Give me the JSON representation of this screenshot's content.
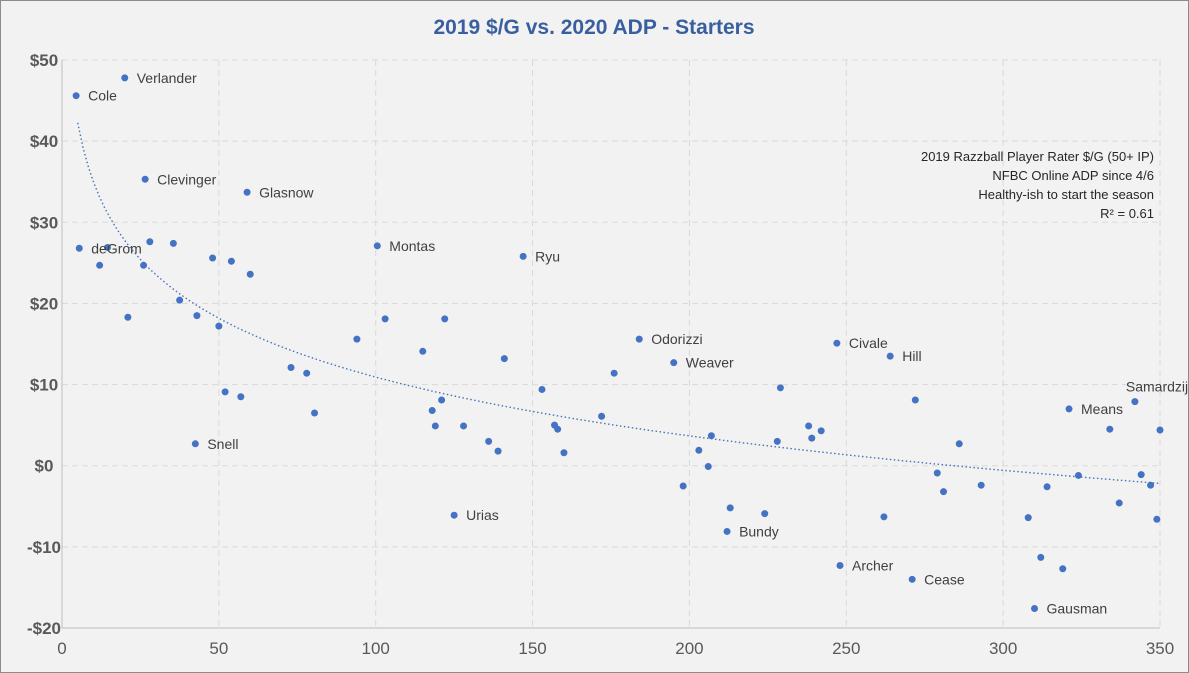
{
  "chart_data": {
    "type": "scatter",
    "title": "2019 $/G vs. 2020 ADP - Starters",
    "xlabel": "",
    "ylabel": "",
    "xlim": [
      0,
      350
    ],
    "ylim": [
      -20,
      50
    ],
    "x_ticks": [
      0,
      50,
      100,
      150,
      200,
      250,
      300,
      350
    ],
    "y_ticks": [
      -20,
      -10,
      0,
      10,
      20,
      30,
      40,
      50
    ],
    "x_tick_labels": [
      "0",
      "50",
      "100",
      "150",
      "200",
      "250",
      "300",
      "350"
    ],
    "y_tick_labels": [
      "-$20",
      "-$10",
      "$0",
      "$10",
      "$20",
      "$30",
      "$40",
      "$50"
    ],
    "grid": true,
    "legend": "none",
    "annotation_lines": [
      "2019 Razzball Player Rater $/G (50+ IP)",
      "NFBC Online ADP since 4/6",
      "Healthy-ish to start the season",
      "R² = 0.61"
    ],
    "trendline": {
      "type": "logarithmic",
      "x_range": [
        5,
        350
      ],
      "r_squared": 0.61
    },
    "points": [
      {
        "x": 4.5,
        "y": 45.6,
        "label": "Cole"
      },
      {
        "x": 20,
        "y": 47.8,
        "label": "Verlander"
      },
      {
        "x": 5.5,
        "y": 26.8,
        "label": "deGrom"
      },
      {
        "x": 12,
        "y": 24.7,
        "label": ""
      },
      {
        "x": 14.5,
        "y": 26.9,
        "label": ""
      },
      {
        "x": 21,
        "y": 18.3,
        "label": ""
      },
      {
        "x": 26,
        "y": 24.7,
        "label": ""
      },
      {
        "x": 26.5,
        "y": 35.3,
        "label": "Clevinger"
      },
      {
        "x": 28,
        "y": 27.6,
        "label": ""
      },
      {
        "x": 35.5,
        "y": 27.4,
        "label": ""
      },
      {
        "x": 37.5,
        "y": 20.4,
        "label": ""
      },
      {
        "x": 42.5,
        "y": 2.7,
        "label": "Snell"
      },
      {
        "x": 43,
        "y": 18.5,
        "label": ""
      },
      {
        "x": 48,
        "y": 25.6,
        "label": ""
      },
      {
        "x": 50,
        "y": 17.2,
        "label": ""
      },
      {
        "x": 52,
        "y": 9.1,
        "label": ""
      },
      {
        "x": 54,
        "y": 25.2,
        "label": ""
      },
      {
        "x": 57,
        "y": 8.5,
        "label": ""
      },
      {
        "x": 59,
        "y": 33.7,
        "label": "Glasnow"
      },
      {
        "x": 60,
        "y": 23.6,
        "label": ""
      },
      {
        "x": 73,
        "y": 12.1,
        "label": ""
      },
      {
        "x": 78,
        "y": 11.4,
        "label": ""
      },
      {
        "x": 80.5,
        "y": 6.5,
        "label": ""
      },
      {
        "x": 94,
        "y": 15.6,
        "label": ""
      },
      {
        "x": 100.5,
        "y": 27.1,
        "label": "Montas"
      },
      {
        "x": 103,
        "y": 18.1,
        "label": ""
      },
      {
        "x": 115,
        "y": 14.1,
        "label": ""
      },
      {
        "x": 118,
        "y": 6.8,
        "label": ""
      },
      {
        "x": 119,
        "y": 4.9,
        "label": ""
      },
      {
        "x": 121,
        "y": 8.1,
        "label": ""
      },
      {
        "x": 122,
        "y": 18.1,
        "label": ""
      },
      {
        "x": 125,
        "y": -6.1,
        "label": "Urias"
      },
      {
        "x": 128,
        "y": 4.9,
        "label": ""
      },
      {
        "x": 136,
        "y": 3.0,
        "label": ""
      },
      {
        "x": 139,
        "y": 1.8,
        "label": ""
      },
      {
        "x": 141,
        "y": 13.2,
        "label": ""
      },
      {
        "x": 147,
        "y": 25.8,
        "label": "Ryu"
      },
      {
        "x": 153,
        "y": 9.4,
        "label": ""
      },
      {
        "x": 157,
        "y": 5.0,
        "label": ""
      },
      {
        "x": 158,
        "y": 4.5,
        "label": ""
      },
      {
        "x": 160,
        "y": 1.6,
        "label": ""
      },
      {
        "x": 172,
        "y": 6.1,
        "label": ""
      },
      {
        "x": 176,
        "y": 11.4,
        "label": ""
      },
      {
        "x": 184,
        "y": 15.6,
        "label": "Odorizzi"
      },
      {
        "x": 195,
        "y": 12.7,
        "label": "Weaver"
      },
      {
        "x": 198,
        "y": -2.5,
        "label": ""
      },
      {
        "x": 203,
        "y": 1.9,
        "label": ""
      },
      {
        "x": 206,
        "y": -0.1,
        "label": ""
      },
      {
        "x": 207,
        "y": 3.7,
        "label": ""
      },
      {
        "x": 212,
        "y": -8.1,
        "label": "Bundy"
      },
      {
        "x": 213,
        "y": -5.2,
        "label": ""
      },
      {
        "x": 224,
        "y": -5.9,
        "label": ""
      },
      {
        "x": 228,
        "y": 3.0,
        "label": ""
      },
      {
        "x": 229,
        "y": 9.6,
        "label": ""
      },
      {
        "x": 238,
        "y": 4.9,
        "label": ""
      },
      {
        "x": 239,
        "y": 3.4,
        "label": ""
      },
      {
        "x": 242,
        "y": 4.3,
        "label": ""
      },
      {
        "x": 247,
        "y": 15.1,
        "label": "Civale"
      },
      {
        "x": 248,
        "y": -12.3,
        "label": "Archer"
      },
      {
        "x": 262,
        "y": -6.3,
        "label": ""
      },
      {
        "x": 264,
        "y": 13.5,
        "label": "Hill"
      },
      {
        "x": 271,
        "y": -14.0,
        "label": "Cease"
      },
      {
        "x": 272,
        "y": 8.1,
        "label": ""
      },
      {
        "x": 279,
        "y": -0.9,
        "label": ""
      },
      {
        "x": 281,
        "y": -3.2,
        "label": ""
      },
      {
        "x": 286,
        "y": 2.7,
        "label": ""
      },
      {
        "x": 293,
        "y": -2.4,
        "label": ""
      },
      {
        "x": 308,
        "y": -6.4,
        "label": ""
      },
      {
        "x": 310,
        "y": -17.6,
        "label": "Gausman"
      },
      {
        "x": 312,
        "y": -11.3,
        "label": ""
      },
      {
        "x": 314,
        "y": -2.6,
        "label": ""
      },
      {
        "x": 319,
        "y": -12.7,
        "label": ""
      },
      {
        "x": 321,
        "y": 7.0,
        "label": "Means"
      },
      {
        "x": 324,
        "y": -1.2,
        "label": ""
      },
      {
        "x": 334,
        "y": 4.5,
        "label": ""
      },
      {
        "x": 337,
        "y": -4.6,
        "label": ""
      },
      {
        "x": 342,
        "y": 7.9,
        "label": "Samardzija"
      },
      {
        "x": 344,
        "y": -1.1,
        "label": ""
      },
      {
        "x": 347,
        "y": -2.4,
        "label": ""
      },
      {
        "x": 349,
        "y": -6.6,
        "label": ""
      },
      {
        "x": 350,
        "y": 4.4,
        "label": ""
      }
    ]
  }
}
